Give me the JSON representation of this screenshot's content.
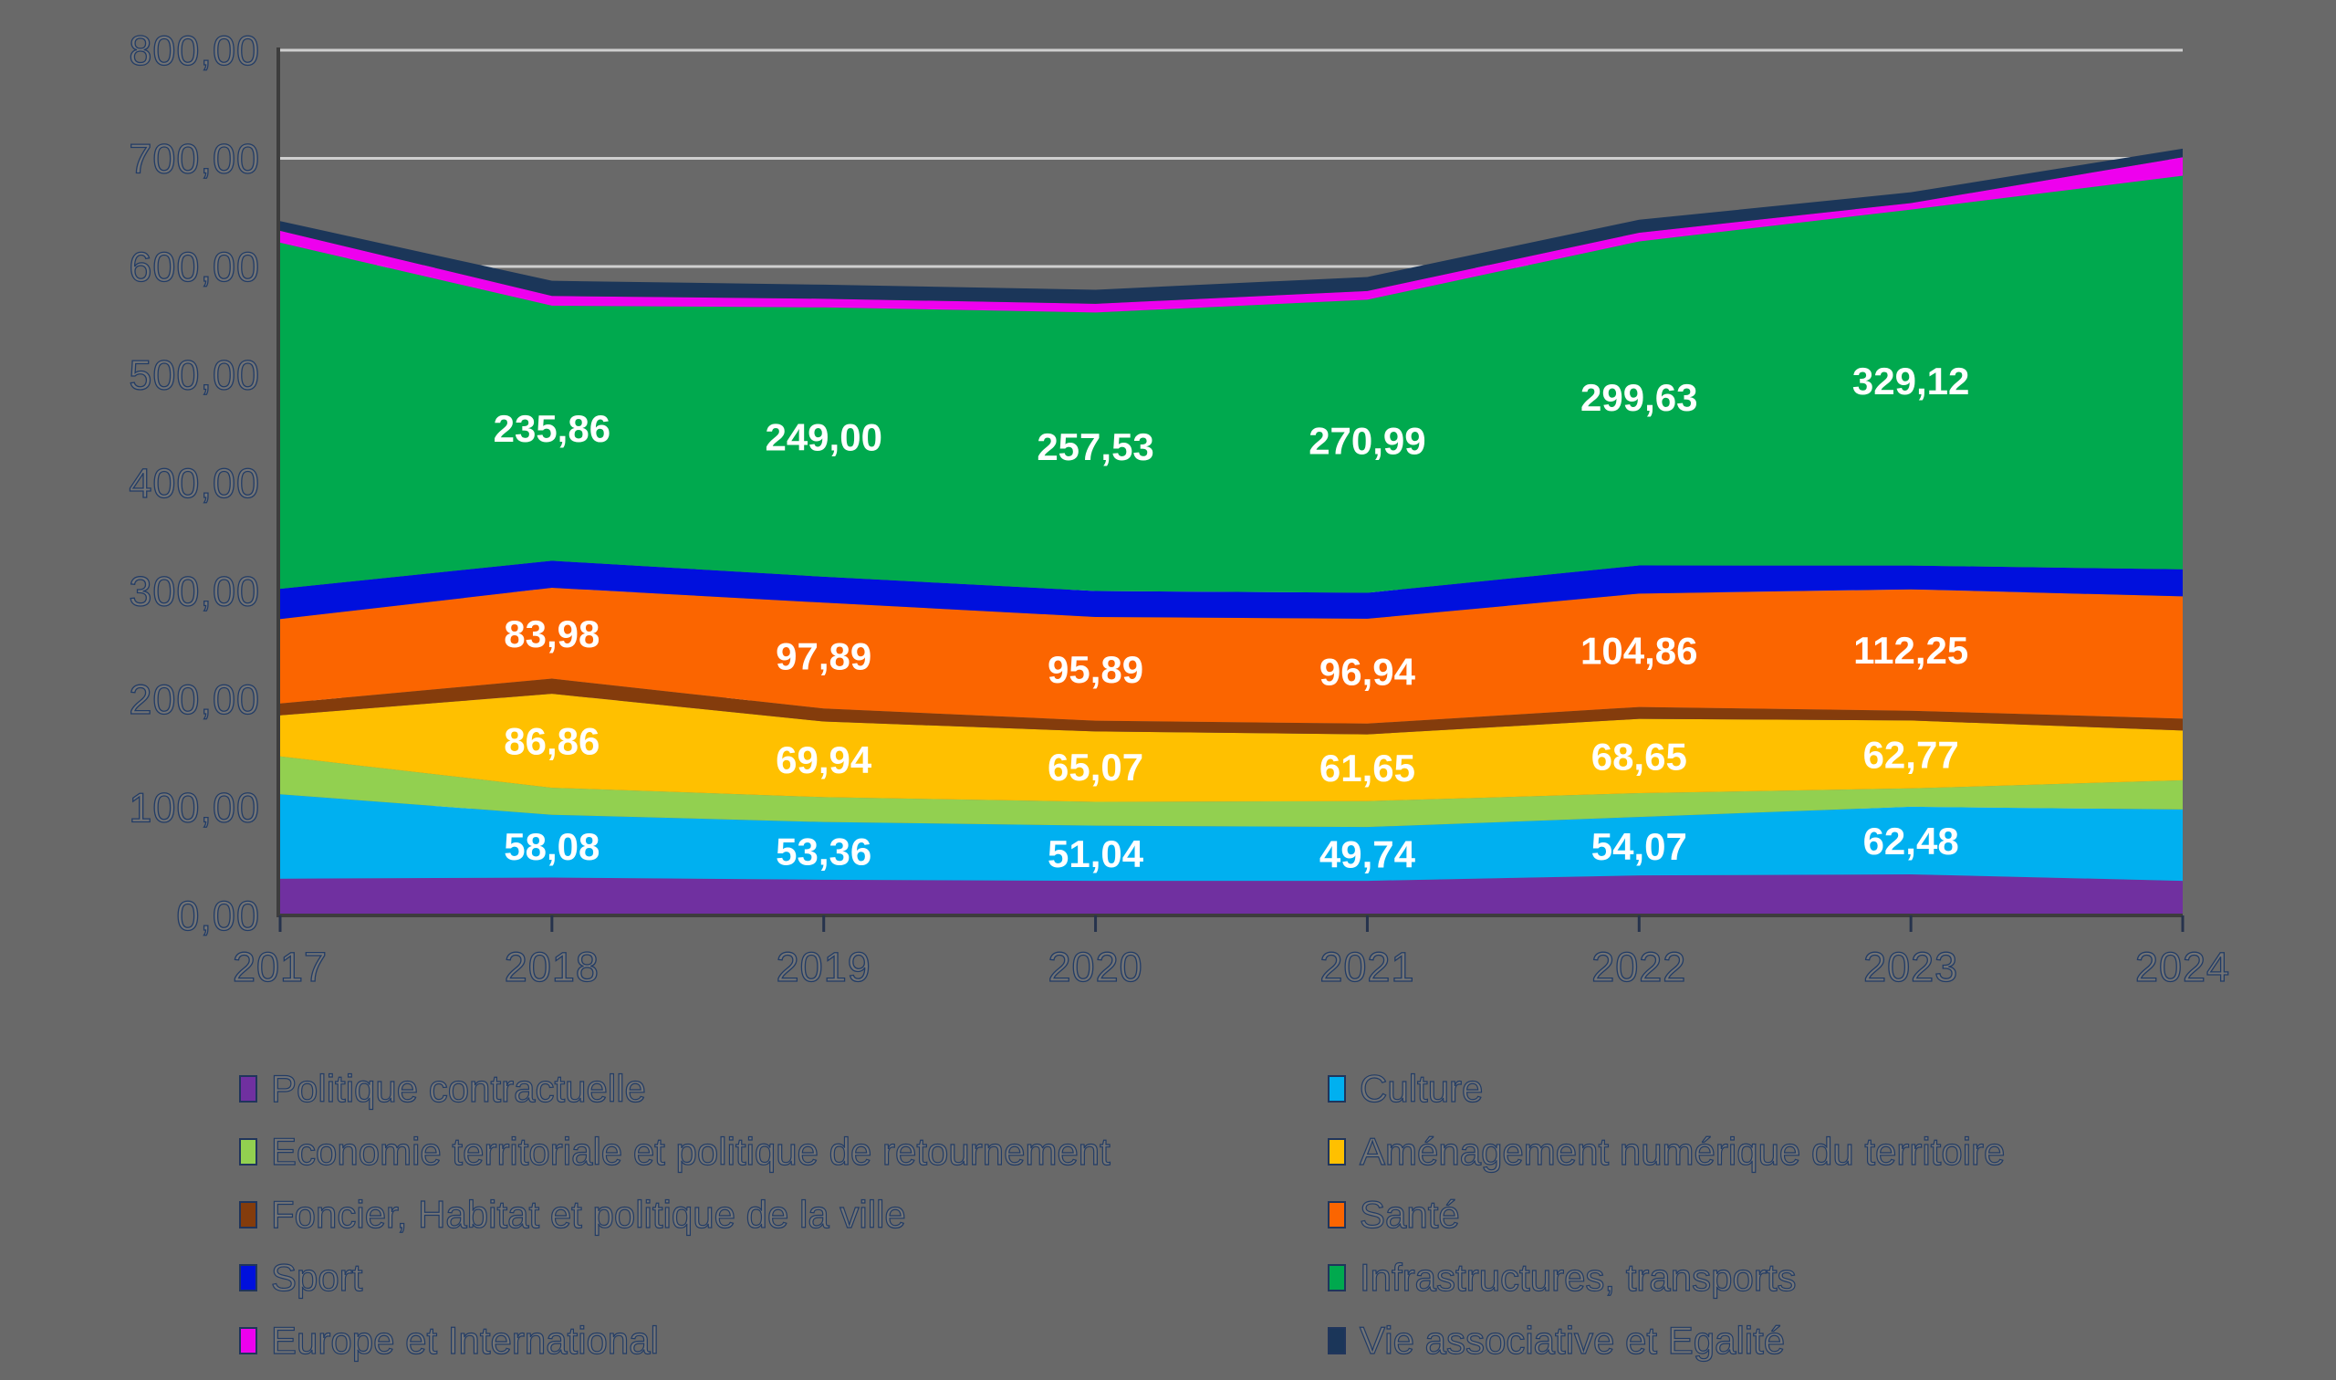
{
  "chart_data": {
    "type": "area",
    "stacked": true,
    "title": "",
    "xlabel": "",
    "ylabel": "",
    "categories": [
      "2017",
      "2018",
      "2019",
      "2020",
      "2021",
      "2022",
      "2023",
      "2024"
    ],
    "ylim": [
      0,
      800
    ],
    "y_tick_step": 100,
    "y_tick_labels": [
      "0,00",
      "100,00",
      "200,00",
      "300,00",
      "400,00",
      "500,00",
      "600,00",
      "700,00",
      "800,00"
    ],
    "grid": "horizontal",
    "legend_position": "bottom-two-columns",
    "number_format": "fr-decimal-comma",
    "data_label_categories": [
      "2018",
      "2019",
      "2020",
      "2021",
      "2022",
      "2023"
    ],
    "colors": {
      "background": "#696969",
      "gridline": "#cfcfcf",
      "axis": "#3d3d3d",
      "tick_mark": "#26334d",
      "tick_text_fill": "#747474",
      "tick_text_outline": "#223c66",
      "data_label_text": "#ffffff"
    },
    "series": [
      {
        "name": "Politique contractuelle",
        "color": "#7030a0",
        "labeled": false,
        "values": [
          34,
          35,
          33,
          32,
          32,
          37,
          38,
          32
        ]
      },
      {
        "name": "Culture",
        "color": "#00b0f0",
        "labeled": true,
        "values": [
          78,
          58.08,
          53.36,
          51.04,
          49.74,
          54.07,
          62.48,
          66
        ],
        "value_labels": [
          "58,08",
          "53,36",
          "51,04",
          "49,74",
          "54,07",
          "62,48"
        ]
      },
      {
        "name": "Economie territoriale et politique de retournement",
        "color": "#92d050",
        "labeled": false,
        "values": [
          35,
          25,
          23,
          22,
          24,
          22,
          17,
          27
        ]
      },
      {
        "name": "Aménagement numérique du territoire",
        "color": "#ffc000",
        "labeled": true,
        "values": [
          38,
          86.86,
          69.94,
          65.07,
          61.65,
          68.65,
          62.77,
          46
        ],
        "value_labels": [
          "86,86",
          "69,94",
          "65,07",
          "61,65",
          "68,65",
          "62,77"
        ]
      },
      {
        "name": "Foncier, Habitat et politique de la ville",
        "color": "#843c0c",
        "labeled": false,
        "values": [
          11,
          14,
          12,
          10,
          10,
          11,
          9,
          11
        ]
      },
      {
        "name": "Santé",
        "color": "#fb6500",
        "labeled": true,
        "values": [
          78,
          83.98,
          97.89,
          95.89,
          96.94,
          104.86,
          112.25,
          113
        ],
        "value_labels": [
          "83,98",
          "97,89",
          "95,89",
          "96,94",
          "104,86",
          "112,25"
        ]
      },
      {
        "name": "Sport",
        "color": "#0010dd",
        "labeled": false,
        "values": [
          28,
          25,
          24,
          24,
          24,
          26,
          22,
          25
        ]
      },
      {
        "name": "Infrastructures, transports",
        "color": "#00a94e",
        "labeled": true,
        "values": [
          320,
          235.86,
          249.0,
          257.53,
          270.99,
          299.63,
          329.12,
          364
        ],
        "value_labels": [
          "235,86",
          "249,00",
          "257,53",
          "270,99",
          "299,63",
          "329,12"
        ]
      },
      {
        "name": "Europe et International",
        "color": "#ee00ee",
        "labeled": false,
        "values": [
          11,
          9,
          8,
          8,
          8,
          8,
          6,
          17
        ]
      },
      {
        "name": "Vie associative et Egalité",
        "color": "#1b3659",
        "labeled": false,
        "values": [
          9,
          14,
          13,
          13,
          13,
          12,
          10,
          8
        ]
      }
    ]
  }
}
